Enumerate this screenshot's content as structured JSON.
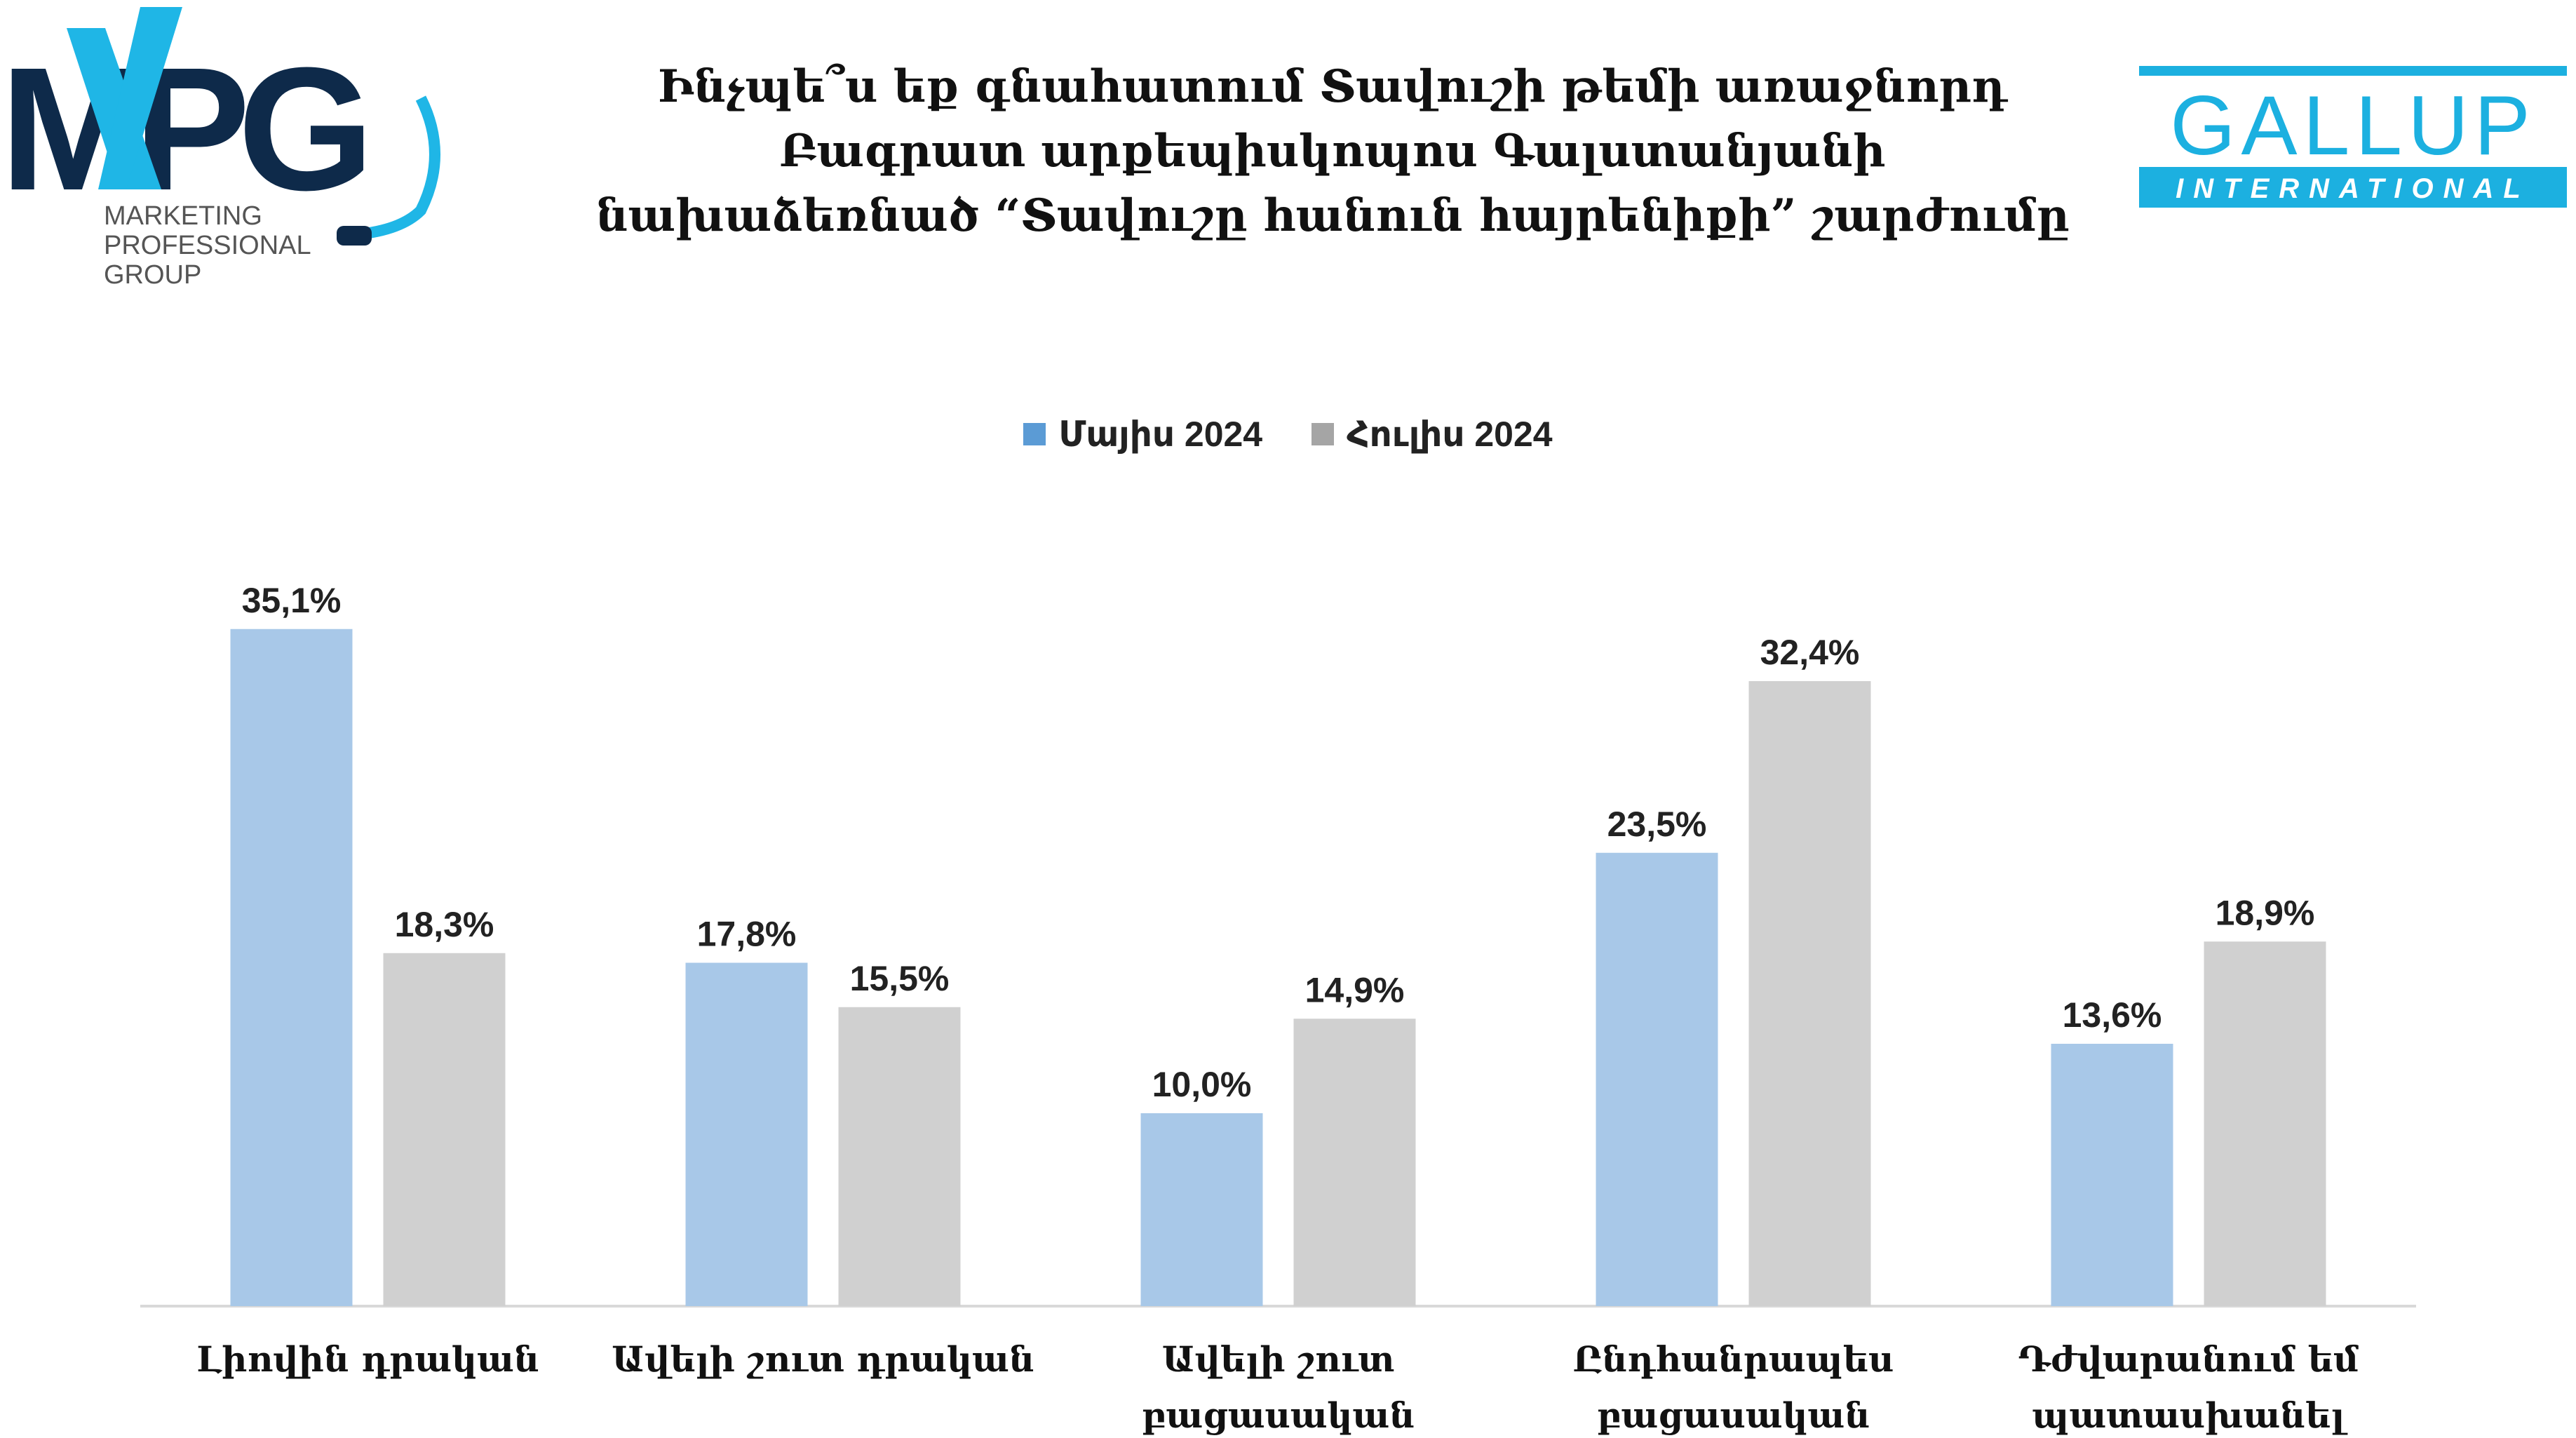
{
  "logos": {
    "mpg": {
      "mark": "MPG",
      "lines": [
        "MARKETING",
        "PROFESSIONAL",
        "GROUP"
      ],
      "color": "#0e2a4a",
      "accent": "#1fb6e6"
    },
    "gallup": {
      "word": "GALLUP",
      "sub": "INTERNATIONAL",
      "color": "#1cb0e0"
    }
  },
  "chart_data": {
    "type": "bar",
    "title_lines": [
      "Ինչպե՞ս եք գնահատում Տավուշի թեմի առաջնորդ",
      "Բագրատ արքեպիսկոպոս Գալստանյանի",
      "նախաձեռնած “Տավուշը հանուն հայրենիքի” շարժումը"
    ],
    "categories": [
      [
        "Լիովին դրական"
      ],
      [
        "Ավելի շուտ դրական"
      ],
      [
        "Ավելի շուտ",
        "բացասական"
      ],
      [
        "Ընդհանրապես",
        "բացասական"
      ],
      [
        "Դժվարանում եմ",
        "պատասխանել"
      ]
    ],
    "series": [
      {
        "name": "Մայիս 2024",
        "color": "#a8c8e8",
        "legend_color": "#5b9bd5",
        "values": [
          35.1,
          17.8,
          10.0,
          23.5,
          13.6
        ],
        "labels": [
          "35,1%",
          "17,8%",
          "10,0%",
          "23,5%",
          "13,6%"
        ]
      },
      {
        "name": "Հուլիս 2024",
        "color": "#d0d0d0",
        "legend_color": "#a5a5a5",
        "values": [
          18.3,
          15.5,
          14.9,
          32.4,
          18.9
        ],
        "labels": [
          "18,3%",
          "15,5%",
          "14,9%",
          "32,4%",
          "18,9%"
        ]
      }
    ],
    "ylim": [
      0,
      40
    ],
    "legend_position": "top-center",
    "grid": false
  }
}
